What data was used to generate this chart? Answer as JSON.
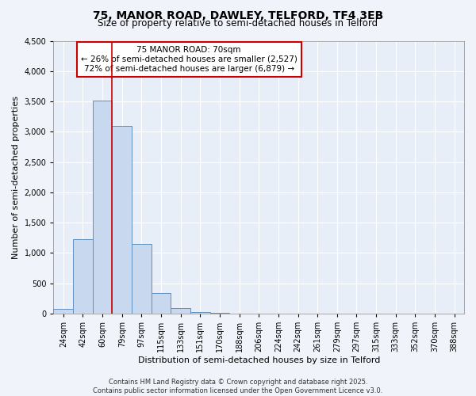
{
  "title": "75, MANOR ROAD, DAWLEY, TELFORD, TF4 3EB",
  "subtitle": "Size of property relative to semi-detached houses in Telford",
  "xlabel": "Distribution of semi-detached houses by size in Telford",
  "ylabel": "Number of semi-detached properties",
  "categories": [
    "24sqm",
    "42sqm",
    "60sqm",
    "79sqm",
    "97sqm",
    "115sqm",
    "133sqm",
    "151sqm",
    "170sqm",
    "188sqm",
    "206sqm",
    "224sqm",
    "242sqm",
    "261sqm",
    "279sqm",
    "297sqm",
    "315sqm",
    "333sqm",
    "352sqm",
    "370sqm",
    "388sqm"
  ],
  "values": [
    80,
    1230,
    3520,
    3100,
    1150,
    340,
    90,
    30,
    10,
    0,
    0,
    0,
    0,
    0,
    0,
    0,
    0,
    0,
    0,
    0,
    0
  ],
  "bar_color": "#c8d8ee",
  "bar_edge_color": "#6090c0",
  "marker_index": 2,
  "marker_line_color": "#cc0000",
  "annotation_text_line1": "75 MANOR ROAD: 70sqm",
  "annotation_text_line2": "← 26% of semi-detached houses are smaller (2,527)",
  "annotation_text_line3": "72% of semi-detached houses are larger (6,879) →",
  "annotation_box_color": "#ffffff",
  "annotation_box_edge_color": "#cc0000",
  "ylim": [
    0,
    4500
  ],
  "yticks": [
    0,
    500,
    1000,
    1500,
    2000,
    2500,
    3000,
    3500,
    4000,
    4500
  ],
  "footer_line1": "Contains HM Land Registry data © Crown copyright and database right 2025.",
  "footer_line2": "Contains public sector information licensed under the Open Government Licence v3.0.",
  "bg_color": "#f0f4fa",
  "plot_bg_color": "#e8eef8",
  "title_fontsize": 10,
  "subtitle_fontsize": 8.5,
  "label_fontsize": 8,
  "tick_fontsize": 7,
  "annotation_fontsize": 7.5,
  "footer_fontsize": 6
}
